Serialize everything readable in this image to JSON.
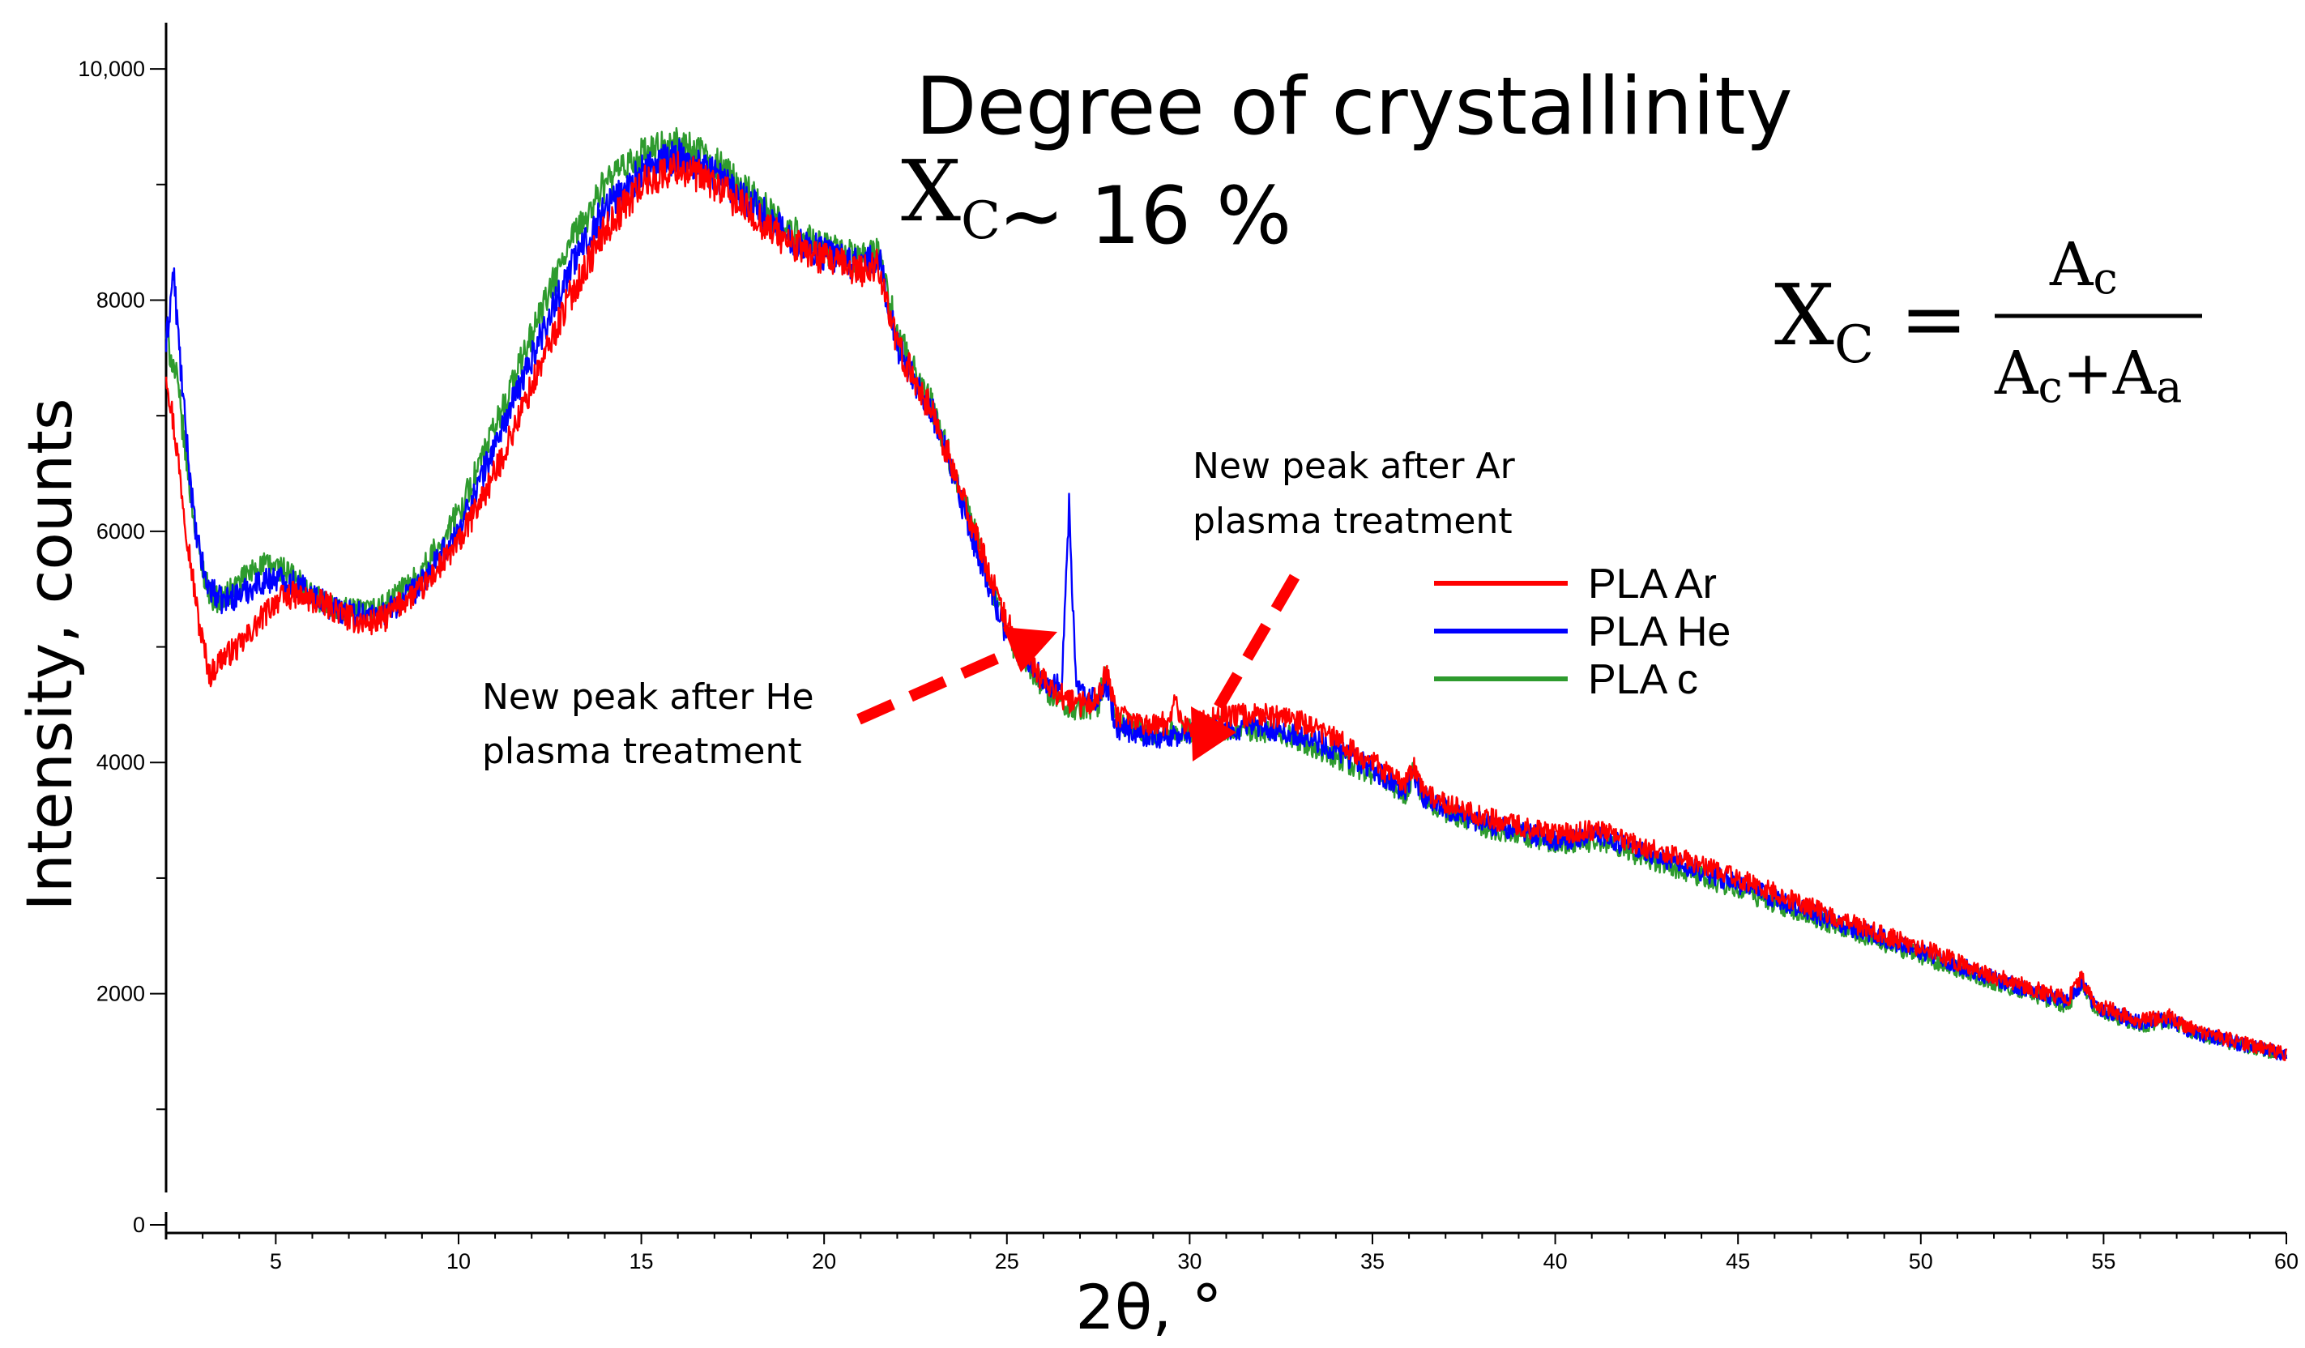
{
  "chart_data": {
    "type": "line",
    "title": "Degree of crystallinity",
    "xlabel": "2θ, °",
    "ylabel": "Intensity, counts",
    "xlim": [
      2,
      60
    ],
    "ylim": [
      0,
      10400
    ],
    "x_ticks": [
      5,
      10,
      15,
      20,
      25,
      30,
      35,
      40,
      45,
      50,
      55,
      60
    ],
    "y_ticks": [
      0,
      2000,
      4000,
      6000,
      8000,
      10000
    ],
    "y_tick_labels": [
      "0",
      "2000",
      "4000",
      "6000",
      "8000",
      "10,000"
    ],
    "crystallinity": {
      "symbol_main": "X",
      "symbol_sub": "C",
      "approx_text": "~ 16 %",
      "formula_numerator_main": "A",
      "formula_numerator_sub": "c",
      "formula_denominator_a_main": "A",
      "formula_denominator_a_sub": "c",
      "formula_plus": "+",
      "formula_denominator_b_main": "A",
      "formula_denominator_b_sub": "a",
      "equals": "="
    },
    "annotations": [
      {
        "lines": [
          "New peak after He",
          "plasma treatment"
        ],
        "points_to_x": 26.7
      },
      {
        "lines": [
          "New peak after Ar",
          "plasma treatment"
        ],
        "points_to_x": 29.6
      }
    ],
    "legend_position": "center-right",
    "series": [
      {
        "name": "PLA Ar",
        "color": "#ff0000",
        "x": [
          2.0,
          2.3,
          2.6,
          2.9,
          3.2,
          3.5,
          4.0,
          4.5,
          5.0,
          5.5,
          6.0,
          6.5,
          7.0,
          7.5,
          8.0,
          8.5,
          9.0,
          10.0,
          11.0,
          12.0,
          13.0,
          14.0,
          15.0,
          16.0,
          17.0,
          18.0,
          19.0,
          20.0,
          21.0,
          21.5,
          22.0,
          23.0,
          24.0,
          25.0,
          26.0,
          26.6,
          27.0,
          27.5,
          27.7,
          28.0,
          29.0,
          29.45,
          29.6,
          29.75,
          30.0,
          31.0,
          32.0,
          33.0,
          34.0,
          35.0,
          35.9,
          36.1,
          36.4,
          37.0,
          38.0,
          40.0,
          41.2,
          42.0,
          45.0,
          48.0,
          50.0,
          52.0,
          54.0,
          54.4,
          54.8,
          56.0,
          56.8,
          57.5,
          60.0
        ],
        "y": [
          7400,
          6700,
          5900,
          5200,
          4750,
          4900,
          5000,
          5200,
          5400,
          5450,
          5400,
          5350,
          5250,
          5200,
          5250,
          5400,
          5500,
          5900,
          6500,
          7250,
          8000,
          8600,
          9000,
          9150,
          9000,
          8750,
          8500,
          8350,
          8250,
          8300,
          7600,
          7000,
          6100,
          5200,
          4700,
          4550,
          4500,
          4550,
          4800,
          4400,
          4320,
          4350,
          4600,
          4350,
          4320,
          4400,
          4420,
          4350,
          4200,
          4000,
          3800,
          3980,
          3750,
          3650,
          3530,
          3380,
          3420,
          3320,
          3000,
          2620,
          2400,
          2150,
          1950,
          2130,
          1900,
          1770,
          1800,
          1680,
          1480
        ]
      },
      {
        "name": "PLA He",
        "color": "#0000ff",
        "x": [
          2.0,
          2.2,
          2.5,
          2.8,
          3.1,
          3.5,
          4.0,
          4.5,
          5.0,
          5.5,
          6.0,
          6.5,
          7.0,
          7.5,
          8.0,
          8.5,
          9.0,
          10.0,
          11.0,
          12.0,
          13.0,
          14.0,
          15.0,
          16.0,
          17.0,
          18.0,
          19.0,
          20.0,
          21.0,
          21.5,
          22.0,
          23.0,
          24.0,
          25.0,
          26.0,
          26.5,
          26.7,
          26.9,
          27.2,
          27.5,
          27.7,
          28.0,
          29.0,
          30.0,
          31.0,
          32.0,
          33.0,
          34.0,
          35.0,
          35.9,
          36.1,
          36.4,
          37.0,
          38.0,
          40.0,
          41.2,
          42.0,
          45.0,
          48.0,
          50.0,
          52.0,
          54.0,
          54.4,
          54.8,
          56.0,
          56.8,
          57.5,
          60.0
        ],
        "y": [
          7600,
          8250,
          7000,
          6000,
          5550,
          5400,
          5450,
          5550,
          5600,
          5550,
          5450,
          5350,
          5300,
          5280,
          5300,
          5400,
          5550,
          6000,
          6750,
          7500,
          8250,
          8800,
          9100,
          9250,
          9100,
          8850,
          8550,
          8400,
          8300,
          8350,
          7600,
          7000,
          6000,
          5100,
          4700,
          4650,
          6200,
          4650,
          4550,
          4550,
          4700,
          4300,
          4220,
          4250,
          4300,
          4300,
          4250,
          4100,
          3950,
          3750,
          3930,
          3700,
          3600,
          3480,
          3330,
          3370,
          3270,
          2950,
          2580,
          2370,
          2130,
          1930,
          2100,
          1880,
          1750,
          1780,
          1660,
          1470
        ]
      },
      {
        "name": "PLA c",
        "color": "#2e9b2e",
        "x": [
          2.0,
          2.3,
          2.6,
          2.9,
          3.2,
          3.5,
          4.0,
          4.5,
          5.0,
          5.5,
          6.0,
          6.5,
          7.0,
          7.5,
          8.0,
          8.5,
          9.0,
          10.0,
          11.0,
          12.0,
          13.0,
          14.0,
          15.0,
          16.0,
          17.0,
          18.0,
          19.0,
          20.0,
          21.0,
          21.5,
          22.0,
          23.0,
          24.0,
          25.0,
          26.0,
          26.6,
          27.0,
          27.5,
          27.7,
          28.0,
          29.0,
          30.0,
          31.0,
          32.0,
          33.0,
          34.0,
          35.0,
          35.9,
          36.1,
          36.4,
          37.0,
          38.0,
          40.0,
          41.2,
          42.0,
          45.0,
          48.0,
          50.0,
          52.0,
          54.0,
          54.4,
          54.8,
          56.0,
          56.8,
          57.5,
          60.0
        ],
        "y": [
          7700,
          7300,
          6500,
          5800,
          5450,
          5400,
          5550,
          5700,
          5700,
          5600,
          5450,
          5350,
          5300,
          5300,
          5350,
          5500,
          5650,
          6150,
          6900,
          7700,
          8450,
          9000,
          9250,
          9350,
          9200,
          8900,
          8600,
          8450,
          8350,
          8400,
          7700,
          7050,
          6100,
          5100,
          4650,
          4500,
          4450,
          4500,
          4800,
          4350,
          4250,
          4280,
          4300,
          4280,
          4200,
          4050,
          3900,
          3720,
          3900,
          3680,
          3580,
          3450,
          3300,
          3320,
          3230,
          2900,
          2550,
          2330,
          2100,
          1900,
          2080,
          1860,
          1730,
          1760,
          1650,
          1460
        ]
      }
    ]
  }
}
